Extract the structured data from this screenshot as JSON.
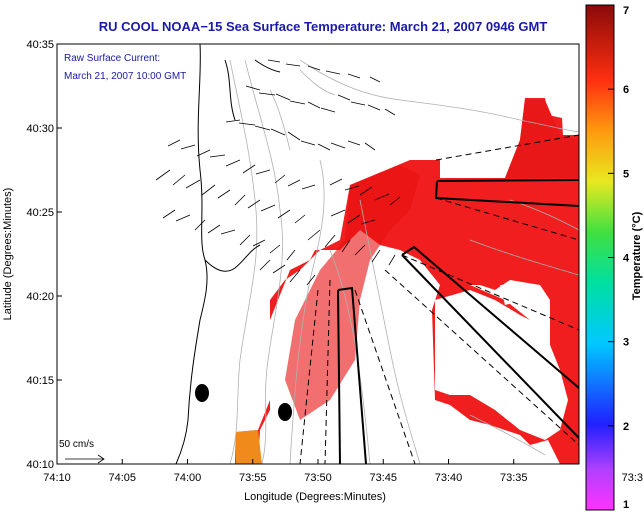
{
  "chart_data": {
    "type": "heatmap",
    "title": "RU COOL  NOAA−15  Sea Surface Temperature:  March 21, 2007 0946 GMT",
    "xlabel": "Longitude (Degrees:Minutes)",
    "ylabel": "Latitude (Degrees:Minutes)",
    "colorbar_label": "Temperature (°C)",
    "colorbar_range": [
      1,
      7
    ],
    "colorbar_ticks": [
      "1",
      "2",
      "3",
      "4",
      "5",
      "6",
      "7"
    ],
    "x_ticks": [
      "74:10",
      "74:05",
      "74:00",
      "73:55",
      "73:50",
      "73:45",
      "73:40",
      "73:35",
      "73:3"
    ],
    "y_ticks": [
      "40:35",
      "40:30",
      "40:25",
      "40:20",
      "40:15",
      "40:10"
    ],
    "xlim": [
      "74:10",
      "73:30"
    ],
    "ylim": [
      "40:10",
      "40:35"
    ],
    "annotation_lines": [
      "Raw Surface Current:",
      "March 21, 2007 10:00 GMT"
    ],
    "scale_label": "50 cm/s",
    "dominant_temperature": 6.3,
    "grid": false
  },
  "colors": {
    "title": "#1a1aa8",
    "land": "#ffffff",
    "sst_main": "#f01e1e",
    "sst_warm": "#e80f0f",
    "sst_cool_patch": "#f08a1a",
    "contour": "#b0b0b0",
    "coast": "#000000"
  }
}
